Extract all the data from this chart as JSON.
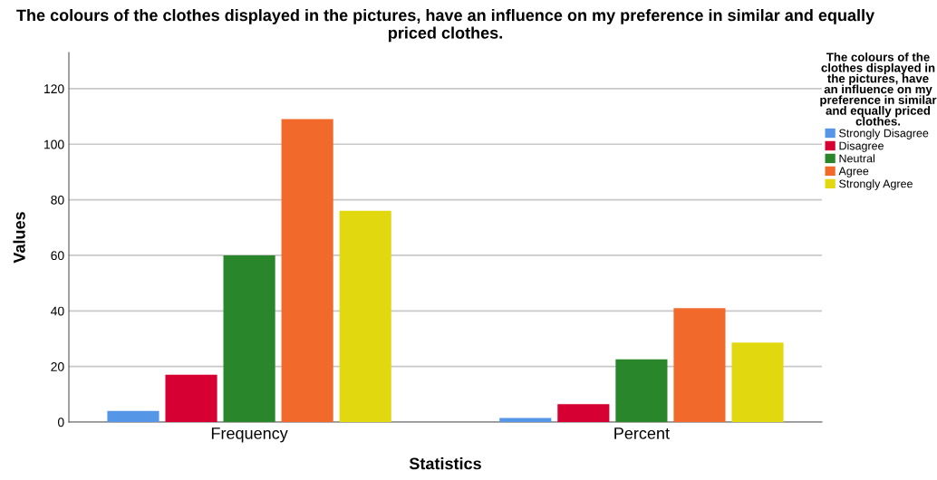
{
  "chart_data": {
    "type": "bar",
    "title": "The colours of the clothes displayed in the pictures, have an influence on my preference in similar and equally priced clothes.",
    "xlabel": "Statistics",
    "ylabel": "Values",
    "legend_title": "The colours of the clothes displayed in the pictures, have an influence on my preference in similar and equally priced clothes.",
    "categories": [
      "Frequency",
      "Percent"
    ],
    "series": [
      {
        "name": "Strongly Disagree",
        "color": "#5596e6",
        "values": [
          4,
          1.5
        ]
      },
      {
        "name": "Disagree",
        "color": "#d60032",
        "values": [
          17,
          6.4
        ]
      },
      {
        "name": "Neutral",
        "color": "#29862a",
        "values": [
          60,
          22.6
        ]
      },
      {
        "name": "Agree",
        "color": "#f2692c",
        "values": [
          109,
          41.0
        ]
      },
      {
        "name": "Strongly Agree",
        "color": "#e2d810",
        "values": [
          76,
          28.6
        ]
      }
    ],
    "ylim": [
      0,
      133
    ],
    "yticks": [
      0,
      20,
      40,
      60,
      80,
      100,
      120
    ],
    "grid": "y",
    "legend": "right"
  }
}
